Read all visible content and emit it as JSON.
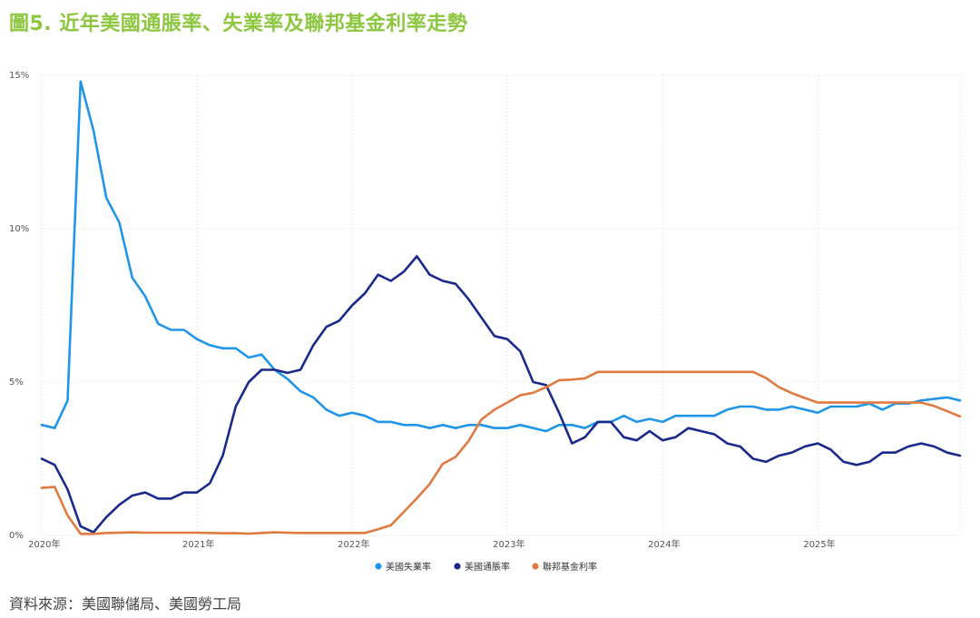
{
  "title": "圖5. 近年美國通脹率、失業率及聯邦基金利率走勢",
  "source": "資料來源：美國聯儲局、美國勞工局",
  "chart_data": {
    "type": "line",
    "title": "圖5. 近年美國通脹率、失業率及聯邦基金利率走勢",
    "xlabel": "",
    "ylabel": "",
    "ylim": [
      0,
      15
    ],
    "yticks": [
      0,
      5,
      10,
      15
    ],
    "ytick_labels": [
      "0%",
      "5%",
      "10%",
      "15%"
    ],
    "x_start": "2020-01",
    "x_end": "2025-11",
    "xtick_labels": [
      "2020年",
      "2021年",
      "2022年",
      "2023年",
      "2024年",
      "2025年"
    ],
    "xtick_month_index": [
      0,
      12,
      24,
      36,
      48,
      60
    ],
    "grid": true,
    "legend_position": "bottom-center",
    "series": [
      {
        "name": "美國失業率",
        "color": "#2196e8",
        "values": [
          3.6,
          3.5,
          4.4,
          14.8,
          13.2,
          11.0,
          10.2,
          8.4,
          7.8,
          6.9,
          6.7,
          6.7,
          6.4,
          6.2,
          6.1,
          6.1,
          5.8,
          5.9,
          5.4,
          5.1,
          4.7,
          4.5,
          4.1,
          3.9,
          4.0,
          3.9,
          3.7,
          3.7,
          3.6,
          3.6,
          3.5,
          3.6,
          3.5,
          3.6,
          3.6,
          3.5,
          3.5,
          3.6,
          3.5,
          3.4,
          3.6,
          3.6,
          3.5,
          3.7,
          3.7,
          3.9,
          3.7,
          3.8,
          3.7,
          3.9,
          3.9,
          3.9,
          3.9,
          4.1,
          4.2,
          4.2,
          4.1,
          4.1,
          4.2,
          4.1,
          4.0,
          4.2,
          4.2,
          4.2,
          4.3,
          4.1,
          4.3,
          4.3,
          4.4,
          4.45,
          4.5,
          4.4
        ]
      },
      {
        "name": "美國通脹率",
        "color": "#1a2a8c",
        "values": [
          2.5,
          2.3,
          1.5,
          0.3,
          0.1,
          0.6,
          1.0,
          1.3,
          1.4,
          1.2,
          1.2,
          1.4,
          1.4,
          1.7,
          2.6,
          4.2,
          5.0,
          5.4,
          5.4,
          5.3,
          5.4,
          6.2,
          6.8,
          7.0,
          7.5,
          7.9,
          8.5,
          8.3,
          8.6,
          9.1,
          8.5,
          8.3,
          8.2,
          7.7,
          7.1,
          6.5,
          6.4,
          6.0,
          5.0,
          4.9,
          4.0,
          3.0,
          3.2,
          3.7,
          3.7,
          3.2,
          3.1,
          3.4,
          3.1,
          3.2,
          3.5,
          3.4,
          3.3,
          3.0,
          2.9,
          2.5,
          2.4,
          2.6,
          2.7,
          2.9,
          3.0,
          2.8,
          2.4,
          2.3,
          2.4,
          2.7,
          2.7,
          2.9,
          3.0,
          2.9,
          2.7,
          2.6
        ]
      },
      {
        "name": "聯邦基金利率",
        "color": "#e07a40",
        "values": [
          1.55,
          1.58,
          0.65,
          0.05,
          0.05,
          0.08,
          0.09,
          0.1,
          0.09,
          0.09,
          0.09,
          0.09,
          0.09,
          0.08,
          0.07,
          0.07,
          0.06,
          0.08,
          0.1,
          0.09,
          0.08,
          0.08,
          0.08,
          0.08,
          0.08,
          0.08,
          0.2,
          0.33,
          0.77,
          1.21,
          1.68,
          2.33,
          2.56,
          3.08,
          3.78,
          4.1,
          4.33,
          4.57,
          4.65,
          4.83,
          5.06,
          5.08,
          5.12,
          5.33,
          5.33,
          5.33,
          5.33,
          5.33,
          5.33,
          5.33,
          5.33,
          5.33,
          5.33,
          5.33,
          5.33,
          5.33,
          5.13,
          4.83,
          4.64,
          4.48,
          4.33,
          4.33,
          4.33,
          4.33,
          4.33,
          4.33,
          4.33,
          4.33,
          4.33,
          4.22,
          4.05,
          3.88
        ]
      }
    ]
  }
}
